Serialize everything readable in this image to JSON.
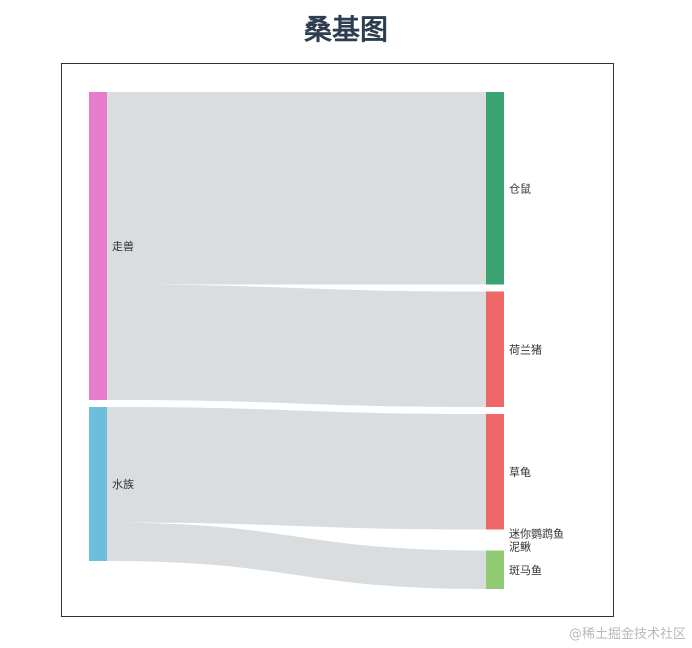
{
  "chart_data": {
    "type": "sankey",
    "title": "桑基图",
    "nodes": [
      {
        "name": "走兽",
        "color": "#e87bcc",
        "column": 0
      },
      {
        "name": "水族",
        "color": "#6cbfdc",
        "column": 0
      },
      {
        "name": "仓鼠",
        "color": "#3ba272",
        "column": 1
      },
      {
        "name": "荷兰猪",
        "color": "#ee6666",
        "column": 1
      },
      {
        "name": "草龟",
        "color": "#ee6666",
        "column": 1
      },
      {
        "name": "迷你鹦鹉鱼",
        "color": "#fc8452",
        "column": 1
      },
      {
        "name": "泥鳅",
        "color": "#9a60b4",
        "column": 1
      },
      {
        "name": "斑马鱼",
        "color": "#91cc75",
        "column": 1
      }
    ],
    "links": [
      {
        "source": "走兽",
        "target": "仓鼠",
        "value": 5
      },
      {
        "source": "走兽",
        "target": "荷兰猪",
        "value": 3
      },
      {
        "source": "水族",
        "target": "草龟",
        "value": 3
      },
      {
        "source": "水族",
        "target": "迷你鹦鹉鱼",
        "value": 0
      },
      {
        "source": "水族",
        "target": "泥鳅",
        "value": 0
      },
      {
        "source": "水族",
        "target": "斑马鱼",
        "value": 1
      }
    ],
    "link_color": "#d5d9dc"
  },
  "watermark": "@稀土掘金技术社区"
}
